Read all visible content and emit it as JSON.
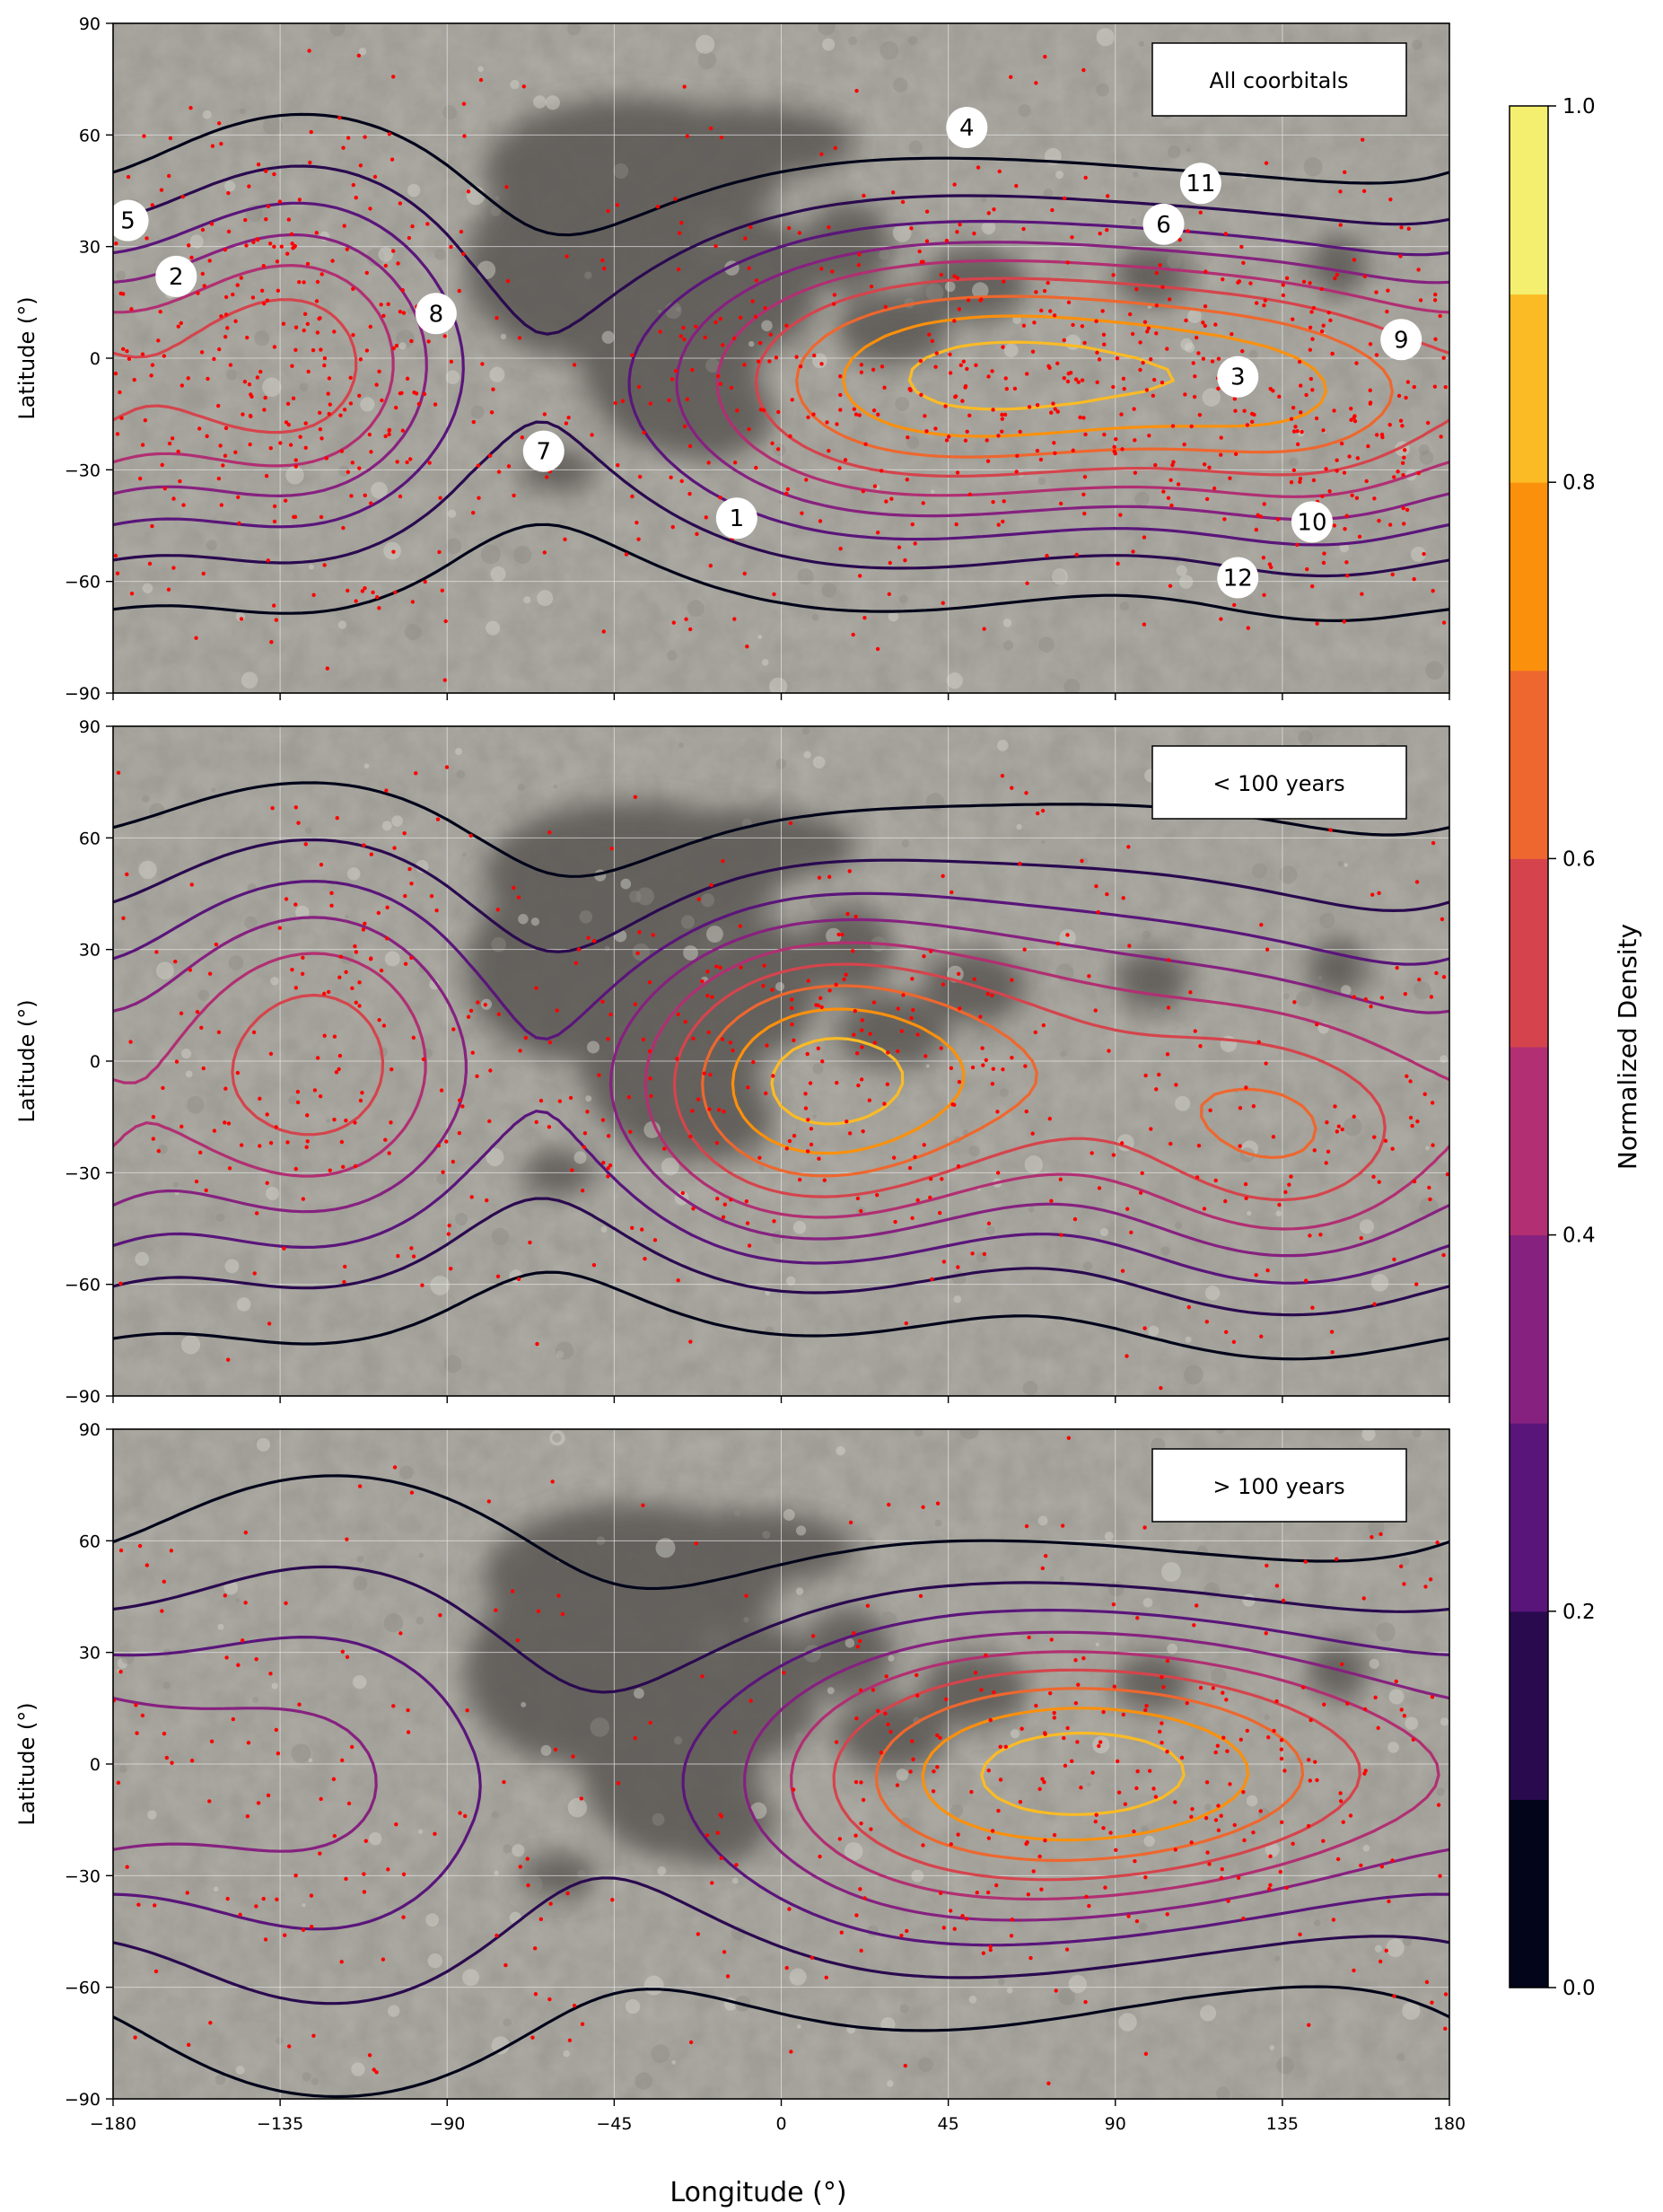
{
  "figure": {
    "xlabel": "Longitude (°)",
    "colorbar_label": "Normalized Density",
    "colorbar_ticks": [
      0.0,
      0.2,
      0.4,
      0.6,
      0.8,
      1.0
    ],
    "colorbar_tick_labels": [
      "0.0",
      "0.2",
      "0.4",
      "0.6",
      "0.8",
      "1.0"
    ],
    "colorbar_colors": [
      "#03051a",
      "#2a0a4f",
      "#5a157a",
      "#86217f",
      "#b12f72",
      "#d5444c",
      "#ee672e",
      "#fb900c",
      "#fbbb25",
      "#f4ef6e"
    ]
  },
  "chart_data": [
    {
      "type": "contour",
      "panel_label": "All coorbitals",
      "xlabel": "",
      "ylabel": "Latitude (°)",
      "xlim": [
        -180,
        180
      ],
      "ylim": [
        -90,
        90
      ],
      "xticks": [
        -180,
        -135,
        -90,
        -45,
        0,
        45,
        90,
        135,
        180
      ],
      "xtick_labels": [
        "−180",
        "−135",
        "−90",
        "−45",
        "0",
        "45",
        "90",
        "135",
        "180"
      ],
      "yticks": [
        -90,
        -60,
        -30,
        0,
        30,
        60,
        90
      ],
      "ytick_labels": [
        "−90",
        "−60",
        "−30",
        "0",
        "30",
        "60",
        "90"
      ],
      "grid": true,
      "background": "lunar surface map",
      "points_color": "#ff0000",
      "peaks": [
        {
          "lon": -128,
          "lat": -1,
          "value": 0.74,
          "sx": 20,
          "sy": 22
        },
        {
          "lon": 95,
          "lat": -3,
          "value": 0.95,
          "sx": 42,
          "sy": 16
        },
        {
          "lon": 20,
          "lat": -10,
          "value": 0.55,
          "sx": 30,
          "sy": 20
        },
        {
          "lon": 150,
          "lat": -25,
          "value": 0.35,
          "sx": 20,
          "sy": 18
        }
      ],
      "contour_levels": [
        0.1,
        0.2,
        0.3,
        0.4,
        0.5,
        0.6,
        0.7,
        0.8,
        0.9
      ],
      "markers": [
        {
          "label": "1",
          "lon": -12,
          "lat": -43
        },
        {
          "label": "2",
          "lon": -163,
          "lat": 22
        },
        {
          "label": "3",
          "lon": 123,
          "lat": -5
        },
        {
          "label": "4",
          "lon": 50,
          "lat": 62
        },
        {
          "label": "5",
          "lon": -176,
          "lat": 37
        },
        {
          "label": "6",
          "lon": 103,
          "lat": 36
        },
        {
          "label": "7",
          "lon": -64,
          "lat": -25
        },
        {
          "label": "8",
          "lon": -93,
          "lat": 12
        },
        {
          "label": "9",
          "lon": 167,
          "lat": 5
        },
        {
          "label": "10",
          "lon": 143,
          "lat": -44
        },
        {
          "label": "11",
          "lon": 113,
          "lat": 47
        },
        {
          "label": "12",
          "lon": 123,
          "lat": -59
        }
      ]
    },
    {
      "type": "contour",
      "panel_label": "< 100 years",
      "xlabel": "",
      "ylabel": "Latitude (°)",
      "xlim": [
        -180,
        180
      ],
      "ylim": [
        -90,
        90
      ],
      "xticks": [
        -180,
        -135,
        -90,
        -45,
        0,
        45,
        90,
        135,
        180
      ],
      "xtick_labels": [
        "−180",
        "−135",
        "−90",
        "−45",
        "0",
        "45",
        "90",
        "135",
        "180"
      ],
      "yticks": [
        -90,
        -60,
        -30,
        0,
        30,
        60,
        90
      ],
      "ytick_labels": [
        "−90",
        "−60",
        "−30",
        "0",
        "30",
        "60",
        "90"
      ],
      "grid": true,
      "background": "lunar surface map",
      "points_color": "#ff0000",
      "peaks": [
        {
          "lon": -123,
          "lat": -1,
          "value": 0.96,
          "sx": 22,
          "sy": 24
        },
        {
          "lon": 0,
          "lat": -8,
          "value": 0.93,
          "sx": 22,
          "sy": 20
        },
        {
          "lon": 50,
          "lat": -5,
          "value": 0.55,
          "sx": 30,
          "sy": 18
        },
        {
          "lon": 140,
          "lat": -25,
          "value": 0.75,
          "sx": 22,
          "sy": 18
        },
        {
          "lon": 95,
          "lat": 10,
          "value": 0.4,
          "sx": 45,
          "sy": 25
        }
      ],
      "contour_levels": [
        0.1,
        0.2,
        0.3,
        0.4,
        0.5,
        0.6,
        0.7,
        0.8,
        0.9
      ],
      "markers": []
    },
    {
      "type": "contour",
      "panel_label": "> 100 years",
      "xlabel": "Longitude (°)",
      "ylabel": "Latitude (°)",
      "xlim": [
        -180,
        180
      ],
      "ylim": [
        -90,
        90
      ],
      "xticks": [
        -180,
        -135,
        -90,
        -45,
        0,
        45,
        90,
        135,
        180
      ],
      "xtick_labels": [
        "−180",
        "−135",
        "−90",
        "−45",
        "0",
        "45",
        "90",
        "135",
        "180"
      ],
      "yticks": [
        -90,
        -60,
        -30,
        0,
        30,
        60,
        90
      ],
      "ytick_labels": [
        "−90",
        "−60",
        "−30",
        "0",
        "30",
        "60",
        "90"
      ],
      "grid": true,
      "background": "lunar surface map",
      "points_color": "#ff0000",
      "peaks": [
        {
          "lon": -120,
          "lat": -6,
          "value": 0.43,
          "sx": 30,
          "sy": 32
        },
        {
          "lon": 95,
          "lat": -2,
          "value": 0.97,
          "sx": 38,
          "sy": 17
        },
        {
          "lon": 30,
          "lat": -10,
          "value": 0.3,
          "sx": 30,
          "sy": 25
        }
      ],
      "contour_levels": [
        0.1,
        0.2,
        0.3,
        0.4,
        0.5,
        0.6,
        0.7,
        0.8,
        0.9
      ],
      "markers": []
    }
  ]
}
